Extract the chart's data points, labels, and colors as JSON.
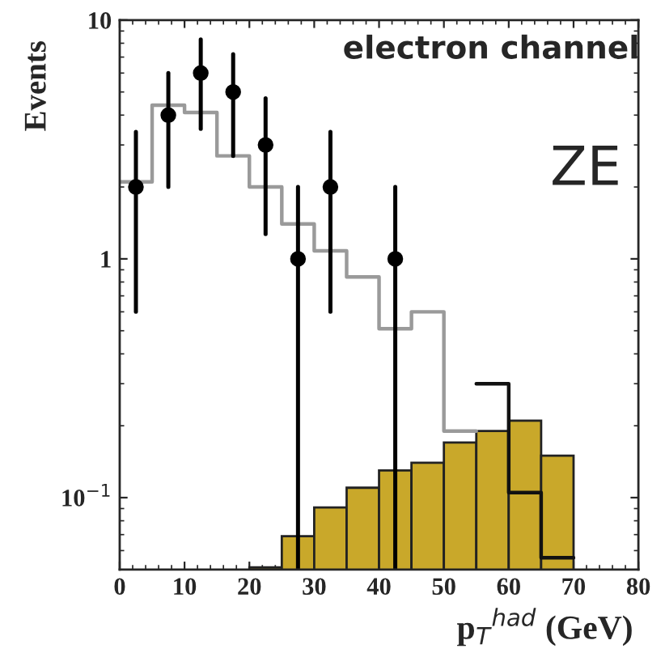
{
  "chart_data": {
    "type": "histogram",
    "ylabel": "Events",
    "xlabel": "p$_{T}$$^{had}$ (GeV)",
    "annotations": [
      "electron channel",
      "ZE"
    ],
    "log": "y",
    "xlim": [
      0,
      80
    ],
    "xticks": [
      0,
      10,
      20,
      30,
      40,
      50,
      60,
      70,
      80
    ],
    "ylim": [
      0.05,
      10
    ],
    "yticks": [
      {
        "value": 0.1,
        "label": "10$^{−1}$"
      },
      1,
      10
    ],
    "grid": false,
    "series": [
      {
        "color": "#c9a82a",
        "bins": [
          20,
          25,
          30,
          35,
          40,
          45,
          50,
          55,
          60,
          65,
          70
        ],
        "values": [
          0.051,
          0.069,
          0.091,
          0.11,
          0.13,
          0.14,
          0.17,
          0.19,
          0.21,
          0.15
        ]
      },
      {
        "type": "step",
        "color": "#9a9a9a",
        "x": [
          0,
          5,
          10,
          15,
          20,
          25,
          30,
          35,
          40,
          45,
          50,
          55
        ],
        "values": [
          2.1,
          4.4,
          4.1,
          2.7,
          2.0,
          1.4,
          1.08,
          0.84,
          0.51,
          0.6,
          0.19,
          0.19
        ]
      },
      {
        "type": "step",
        "color": "#111111",
        "x": [
          55,
          60,
          65,
          70
        ],
        "values": [
          0.3,
          0.105,
          0.056,
          0.056
        ]
      },
      {
        "type": "scatter",
        "color": "#000000",
        "marker": "circle",
        "x": [
          2.5,
          7.5,
          12.5,
          17.5,
          22.5,
          27.5,
          32.5,
          42.5
        ],
        "values": [
          2,
          4,
          6,
          5,
          3,
          1,
          2,
          1
        ],
        "errors": [
          [
            0.6,
            3.4
          ],
          [
            2,
            6
          ],
          [
            3.5,
            8.3
          ],
          [
            2.7,
            7.2
          ],
          [
            1.27,
            4.7
          ],
          [
            0.05,
            2
          ],
          [
            0.6,
            3.4
          ],
          [
            0.05,
            2
          ]
        ]
      }
    ]
  }
}
